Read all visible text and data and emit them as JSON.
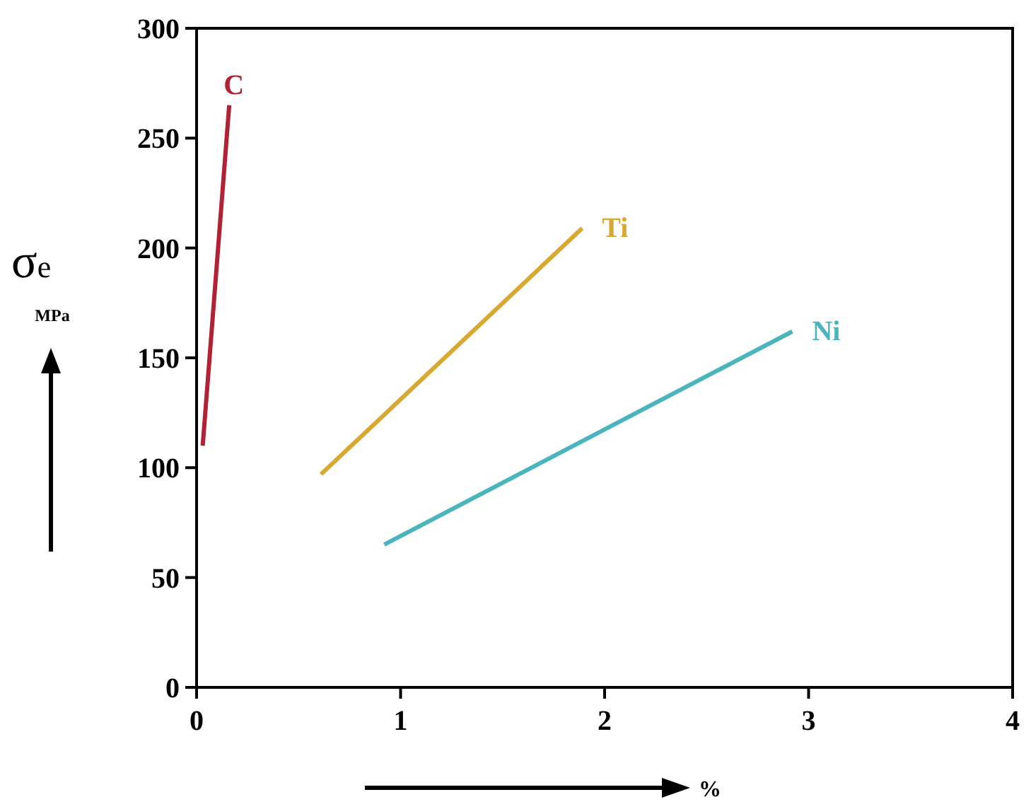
{
  "chart_data": {
    "type": "line",
    "xlabel": "%",
    "ylabel": "σe",
    "annotations": [
      "MPa"
    ],
    "xlim": [
      0,
      4
    ],
    "ylim": [
      0,
      300
    ],
    "xticks": [
      0,
      1,
      2,
      3,
      4
    ],
    "yticks": [
      0,
      50,
      100,
      150,
      200,
      250,
      300
    ],
    "grid": false,
    "marker": "none",
    "line_style": "solid",
    "series": [
      {
        "name": "C",
        "color": "#b22234",
        "x": [
          0.03,
          0.16
        ],
        "values": [
          110,
          265
        ]
      },
      {
        "name": "Ti",
        "color": "#d9a830",
        "x": [
          0.61,
          1.89
        ],
        "values": [
          97,
          209
        ]
      },
      {
        "name": "Ni",
        "color": "#4ab5bd",
        "x": [
          0.92,
          2.92
        ],
        "values": [
          65,
          162
        ]
      }
    ]
  }
}
